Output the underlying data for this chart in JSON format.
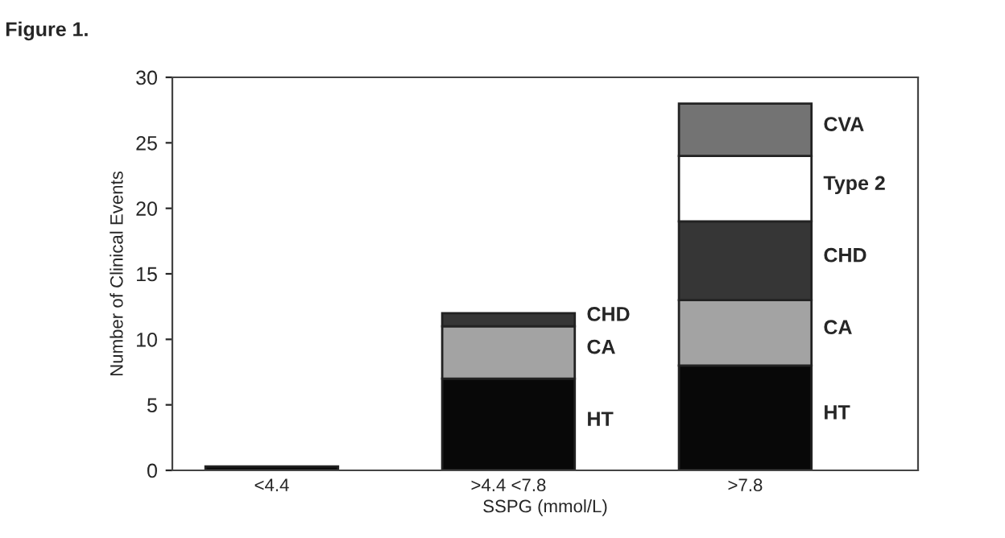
{
  "chart_data": {
    "type": "bar",
    "title": "Figure 1.",
    "xlabel": "SSPG (mmol/L)",
    "ylabel": "Number of Clinical Events",
    "categories": [
      "<4.4",
      ">4.4 <7.8",
      ">7.8"
    ],
    "stacked": true,
    "series": [
      {
        "color": "#080808",
        "values": [
          0.3,
          null,
          null
        ]
      },
      {
        "name": "HT",
        "color": "#080808",
        "values": [
          null,
          7,
          8
        ]
      },
      {
        "name": "CA",
        "color": "#a3a3a3",
        "values": [
          null,
          4,
          5
        ]
      },
      {
        "name": "CHD",
        "color": "#363636",
        "values": [
          null,
          1,
          6
        ]
      },
      {
        "name": "Type 2",
        "color": "#ffffff",
        "values": [
          null,
          null,
          5
        ]
      },
      {
        "name": "CVA",
        "color": "#737373",
        "values": [
          null,
          null,
          4
        ]
      }
    ],
    "ylim": [
      0,
      30
    ],
    "yticks": [
      0,
      5,
      10,
      15,
      20,
      25,
      30
    ],
    "grid": false,
    "legend": false
  }
}
